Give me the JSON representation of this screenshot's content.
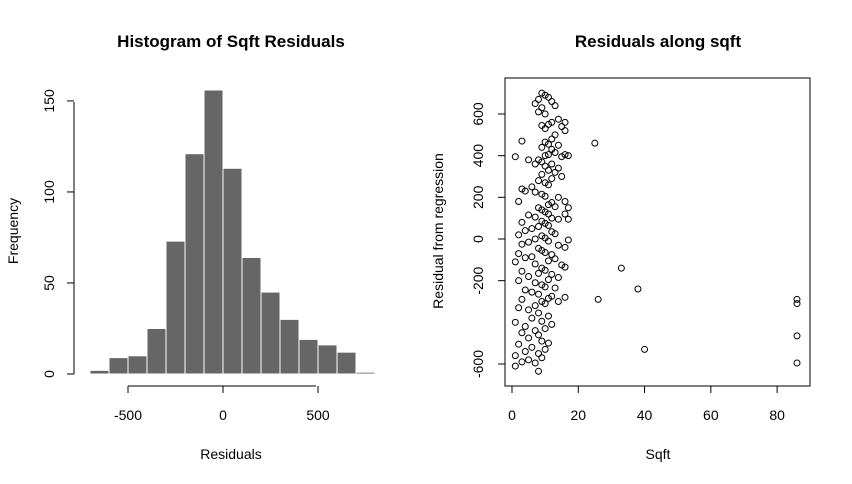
{
  "chart_data": [
    {
      "type": "bar",
      "title": "Histogram of Sqft Residuals",
      "xlabel": "Residuals",
      "ylabel": "Frequency",
      "bin_width": 100,
      "bin_starts": [
        -700,
        -600,
        -500,
        -400,
        -300,
        -200,
        -100,
        0,
        100,
        200,
        300,
        400,
        500,
        600,
        700
      ],
      "values": [
        2,
        9,
        10,
        25,
        73,
        121,
        156,
        113,
        64,
        45,
        30,
        19,
        16,
        12,
        1
      ],
      "xlim": [
        -760,
        790
      ],
      "ylim": [
        0,
        156
      ],
      "x_ticks": [
        -500,
        0,
        500
      ],
      "x_tick_labels": [
        "-500",
        "0",
        "500"
      ],
      "y_ticks": [
        0,
        50,
        100,
        150
      ],
      "y_tick_labels": [
        "0",
        "50",
        "100",
        "150"
      ],
      "bar_color": "#666666",
      "grid": false
    },
    {
      "type": "scatter",
      "title": "Residuals along sqft",
      "xlabel": "Sqft",
      "ylabel": "Residual from regression",
      "xlim": [
        -1,
        89
      ],
      "ylim": [
        -645,
        710
      ],
      "x_ticks": [
        0,
        20,
        40,
        60,
        80
      ],
      "x_tick_labels": [
        "0",
        "20",
        "40",
        "60",
        "80"
      ],
      "y_ticks": [
        -600,
        -200,
        0,
        200,
        400,
        600
      ],
      "y_tick_labels": [
        "-600",
        "-200",
        "0",
        "200",
        "400",
        "600"
      ],
      "marker": "open-circle",
      "grid": false,
      "points": [
        [
          9,
          700
        ],
        [
          10,
          690
        ],
        [
          11,
          680
        ],
        [
          8,
          670
        ],
        [
          12,
          660
        ],
        [
          7,
          650
        ],
        [
          13,
          640
        ],
        [
          9,
          630
        ],
        [
          8,
          610
        ],
        [
          10,
          600
        ],
        [
          14,
          575
        ],
        [
          12,
          560
        ],
        [
          11,
          550
        ],
        [
          9,
          545
        ],
        [
          10,
          530
        ],
        [
          16,
          560
        ],
        [
          15,
          540
        ],
        [
          16,
          520
        ],
        [
          13,
          500
        ],
        [
          12,
          480
        ],
        [
          3,
          470
        ],
        [
          10,
          465
        ],
        [
          11,
          455
        ],
        [
          14,
          450
        ],
        [
          25,
          460
        ],
        [
          9,
          440
        ],
        [
          12,
          430
        ],
        [
          13,
          415
        ],
        [
          11,
          405
        ],
        [
          10,
          400
        ],
        [
          15,
          395
        ],
        [
          16,
          405
        ],
        [
          17,
          400
        ],
        [
          1,
          395
        ],
        [
          8,
          380
        ],
        [
          5,
          380
        ],
        [
          9,
          370
        ],
        [
          7,
          360
        ],
        [
          12,
          360
        ],
        [
          10,
          350
        ],
        [
          14,
          340
        ],
        [
          11,
          330
        ],
        [
          13,
          320
        ],
        [
          9,
          310
        ],
        [
          15,
          300
        ],
        [
          12,
          290
        ],
        [
          8,
          280
        ],
        [
          10,
          270
        ],
        [
          11,
          260
        ],
        [
          6,
          250
        ],
        [
          3,
          240
        ],
        [
          4,
          230
        ],
        [
          7,
          225
        ],
        [
          9,
          215
        ],
        [
          10,
          205
        ],
        [
          14,
          200
        ],
        [
          16,
          180
        ],
        [
          12,
          175
        ],
        [
          11,
          165
        ],
        [
          2,
          180
        ],
        [
          13,
          155
        ],
        [
          8,
          150
        ],
        [
          17,
          150
        ],
        [
          9,
          140
        ],
        [
          10,
          130
        ],
        [
          11,
          120
        ],
        [
          5,
          115
        ],
        [
          7,
          105
        ],
        [
          12,
          100
        ],
        [
          14,
          95
        ],
        [
          16,
          120
        ],
        [
          17,
          95
        ],
        [
          9,
          85
        ],
        [
          10,
          75
        ],
        [
          11,
          65
        ],
        [
          3,
          80
        ],
        [
          8,
          60
        ],
        [
          6,
          50
        ],
        [
          4,
          40
        ],
        [
          12,
          35
        ],
        [
          13,
          25
        ],
        [
          2,
          20
        ],
        [
          9,
          15
        ],
        [
          10,
          5
        ],
        [
          7,
          0
        ],
        [
          11,
          -10
        ],
        [
          5,
          -15
        ],
        [
          3,
          -25
        ],
        [
          14,
          -30
        ],
        [
          17,
          -5
        ],
        [
          16,
          -40
        ],
        [
          8,
          -45
        ],
        [
          9,
          -55
        ],
        [
          10,
          -65
        ],
        [
          2,
          -70
        ],
        [
          12,
          -75
        ],
        [
          6,
          -85
        ],
        [
          4,
          -90
        ],
        [
          13,
          -95
        ],
        [
          11,
          -105
        ],
        [
          1,
          -110
        ],
        [
          7,
          -120
        ],
        [
          15,
          -125
        ],
        [
          16,
          -135
        ],
        [
          9,
          -140
        ],
        [
          10,
          -150
        ],
        [
          3,
          -155
        ],
        [
          8,
          -165
        ],
        [
          12,
          -170
        ],
        [
          5,
          -180
        ],
        [
          14,
          -185
        ],
        [
          11,
          -195
        ],
        [
          2,
          -200
        ],
        [
          7,
          -210
        ],
        [
          9,
          -220
        ],
        [
          10,
          -230
        ],
        [
          13,
          -235
        ],
        [
          4,
          -245
        ],
        [
          6,
          -255
        ],
        [
          8,
          -265
        ],
        [
          12,
          -275
        ],
        [
          11,
          -285
        ],
        [
          3,
          -290
        ],
        [
          9,
          -300
        ],
        [
          10,
          -310
        ],
        [
          7,
          -320
        ],
        [
          14,
          -300
        ],
        [
          16,
          -280
        ],
        [
          2,
          -330
        ],
        [
          5,
          -340
        ],
        [
          8,
          -355
        ],
        [
          11,
          -370
        ],
        [
          6,
          -380
        ],
        [
          9,
          -395
        ],
        [
          1,
          -400
        ],
        [
          12,
          -410
        ],
        [
          4,
          -420
        ],
        [
          10,
          -430
        ],
        [
          7,
          -440
        ],
        [
          3,
          -450
        ],
        [
          8,
          -460
        ],
        [
          5,
          -475
        ],
        [
          9,
          -490
        ],
        [
          11,
          -500
        ],
        [
          2,
          -505
        ],
        [
          6,
          -520
        ],
        [
          10,
          -530
        ],
        [
          4,
          -540
        ],
        [
          8,
          -550
        ],
        [
          1,
          -560
        ],
        [
          9,
          -570
        ],
        [
          5,
          -580
        ],
        [
          7,
          -595
        ],
        [
          1,
          -610
        ],
        [
          8,
          -635
        ],
        [
          3,
          -590
        ],
        [
          33,
          -140
        ],
        [
          38,
          -240
        ],
        [
          26,
          -290
        ],
        [
          40,
          -530
        ],
        [
          86,
          -290
        ],
        [
          86,
          -310
        ],
        [
          86,
          -465
        ],
        [
          86,
          -595
        ]
      ]
    }
  ]
}
